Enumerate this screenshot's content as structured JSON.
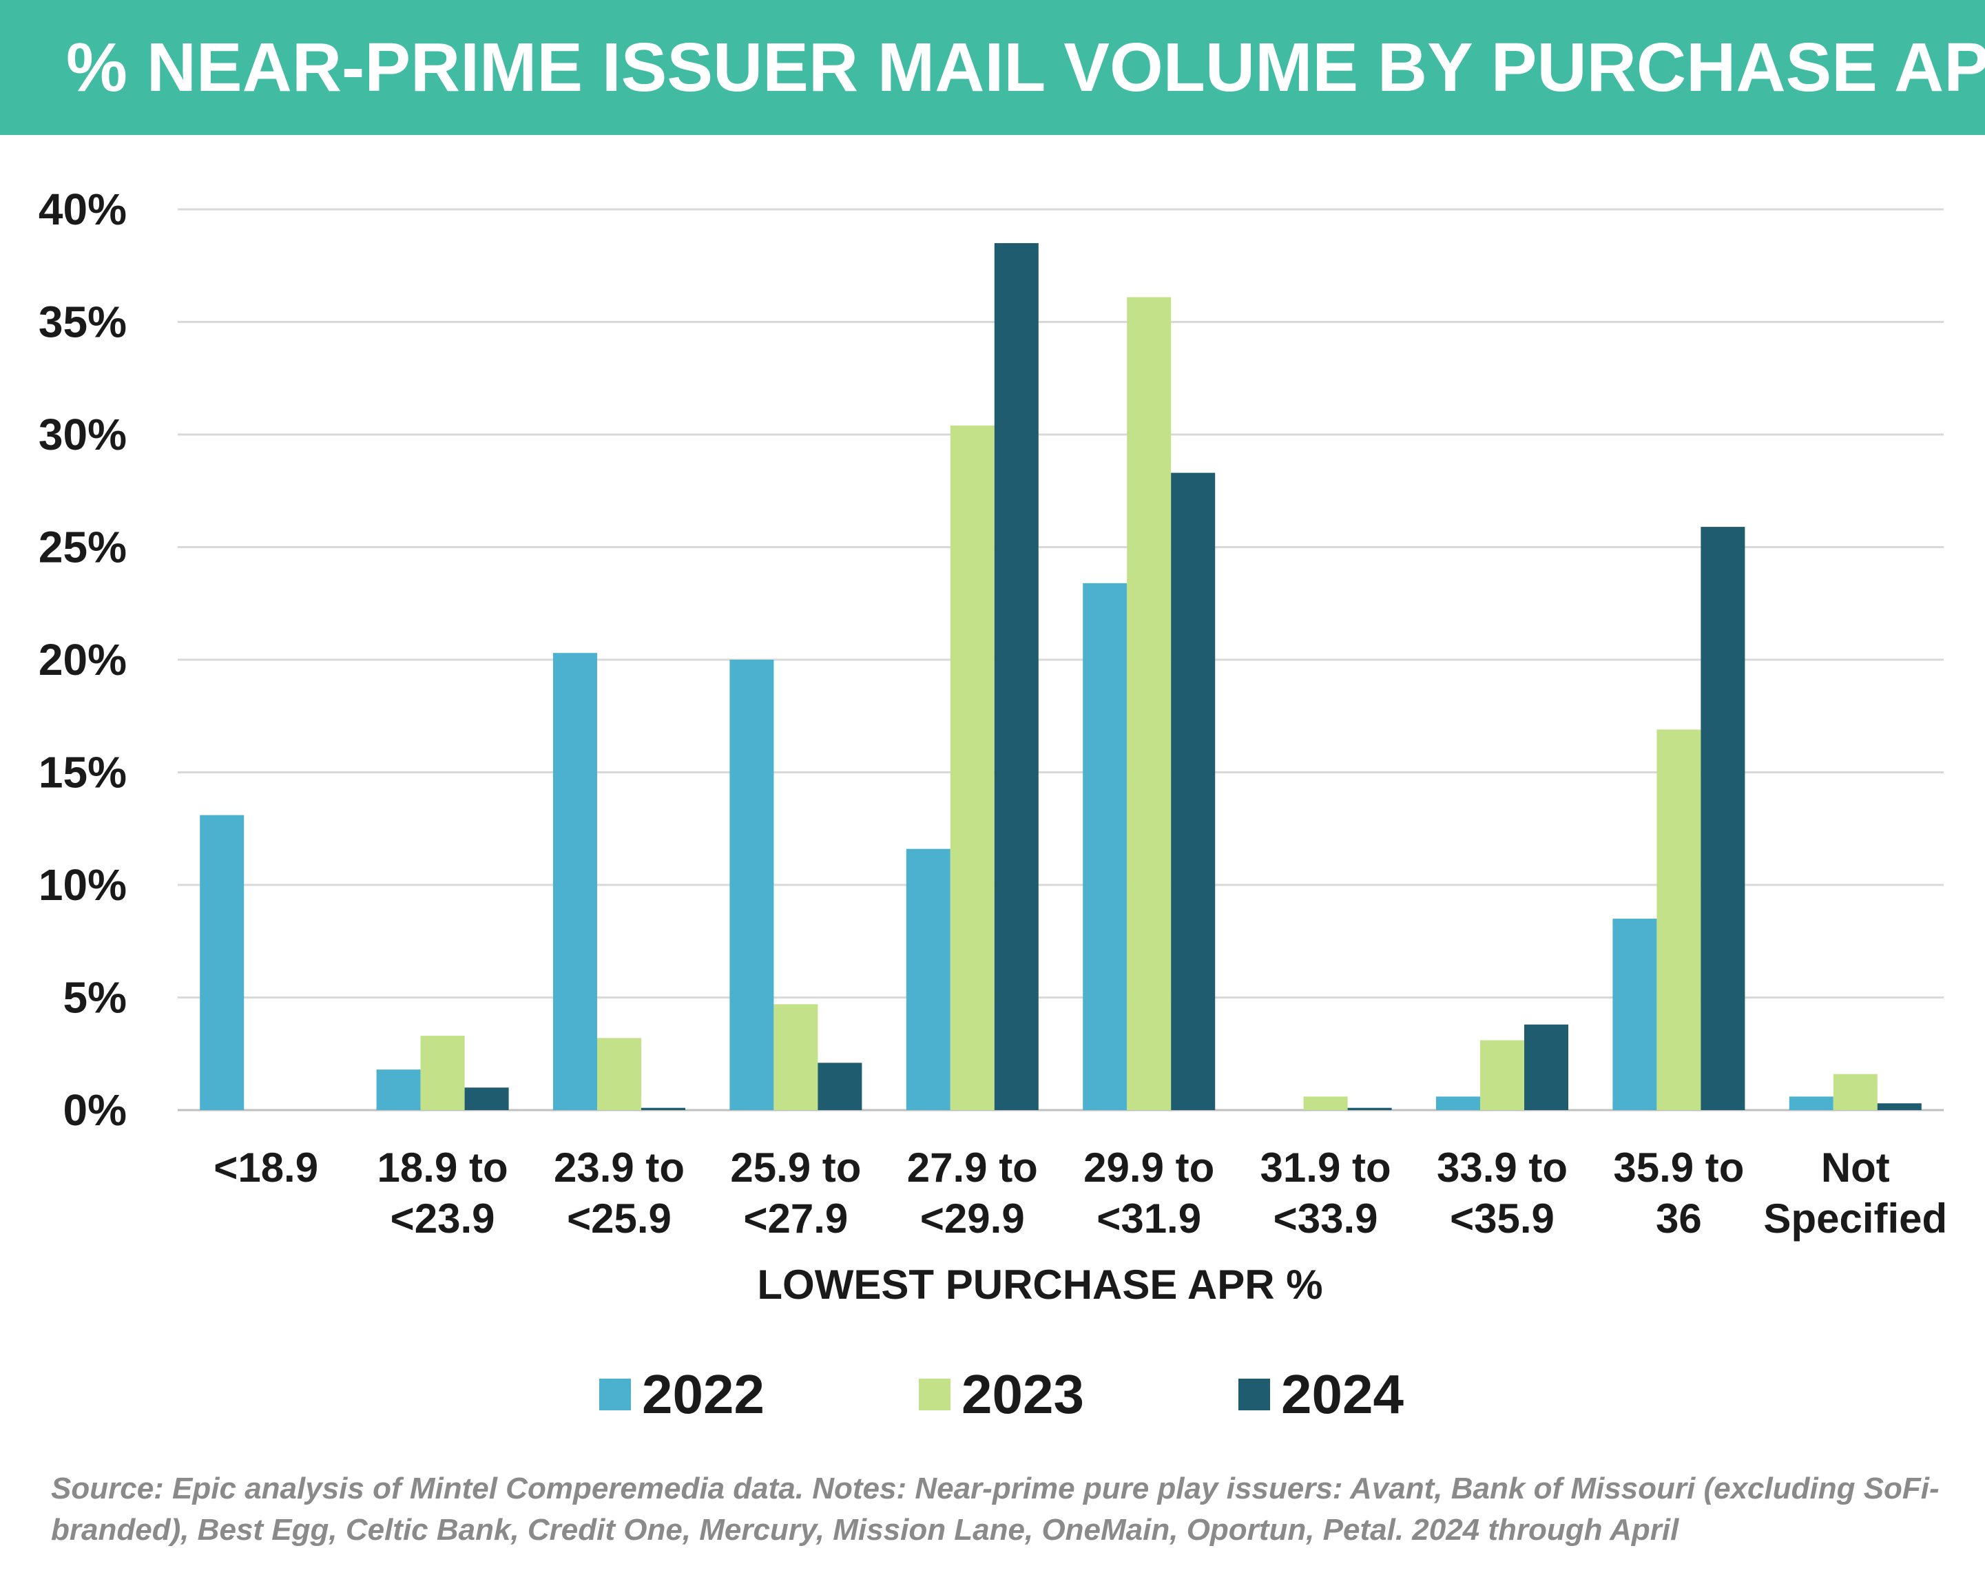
{
  "title": "% NEAR-PRIME ISSUER MAIL VOLUME BY PURCHASE APR",
  "footnote": "Source: Epic analysis of Mintel Comperemedia data. Notes: Near-prime pure play issuers: Avant, Bank of Missouri (excluding SoFi-branded), Best Egg, Celtic Bank, Credit One, Mercury, Mission Lane, OneMain, Oportun, Petal. 2024 through April",
  "colors": {
    "banner": "#41bca2",
    "s2022": "#4cb1cf",
    "s2023": "#c3e188",
    "s2024": "#1f5c70",
    "grid": "#d9d9d9"
  },
  "chart_data": {
    "type": "bar",
    "title": "% NEAR-PRIME ISSUER MAIL VOLUME BY PURCHASE APR",
    "xlabel": "LOWEST PURCHASE APR %",
    "ylabel": "",
    "ylim": [
      0,
      40
    ],
    "yticks": [
      "0%",
      "5%",
      "10%",
      "15%",
      "20%",
      "25%",
      "30%",
      "35%",
      "40%"
    ],
    "grid": true,
    "legend_position": "bottom",
    "categories": [
      [
        "<18.9"
      ],
      [
        "18.9 to",
        "<23.9"
      ],
      [
        "23.9 to",
        "<25.9"
      ],
      [
        "25.9 to",
        "<27.9"
      ],
      [
        "27.9 to",
        "<29.9"
      ],
      [
        "29.9 to",
        "<31.9"
      ],
      [
        "31.9 to",
        "<33.9"
      ],
      [
        "33.9 to",
        "<35.9"
      ],
      [
        "35.9 to",
        "36"
      ],
      [
        "Not",
        "Specified"
      ]
    ],
    "series": [
      {
        "name": "2022",
        "color": "#4cb1cf",
        "values": [
          13.1,
          1.8,
          20.3,
          20.0,
          11.6,
          23.4,
          0.0,
          0.6,
          8.5,
          0.6
        ]
      },
      {
        "name": "2023",
        "color": "#c3e188",
        "values": [
          0.0,
          3.3,
          3.2,
          4.7,
          30.4,
          36.1,
          0.6,
          3.1,
          16.9,
          1.6
        ]
      },
      {
        "name": "2024",
        "color": "#1f5c70",
        "values": [
          0.0,
          1.0,
          0.1,
          2.1,
          38.5,
          28.3,
          0.1,
          3.8,
          25.9,
          0.3
        ]
      }
    ]
  }
}
